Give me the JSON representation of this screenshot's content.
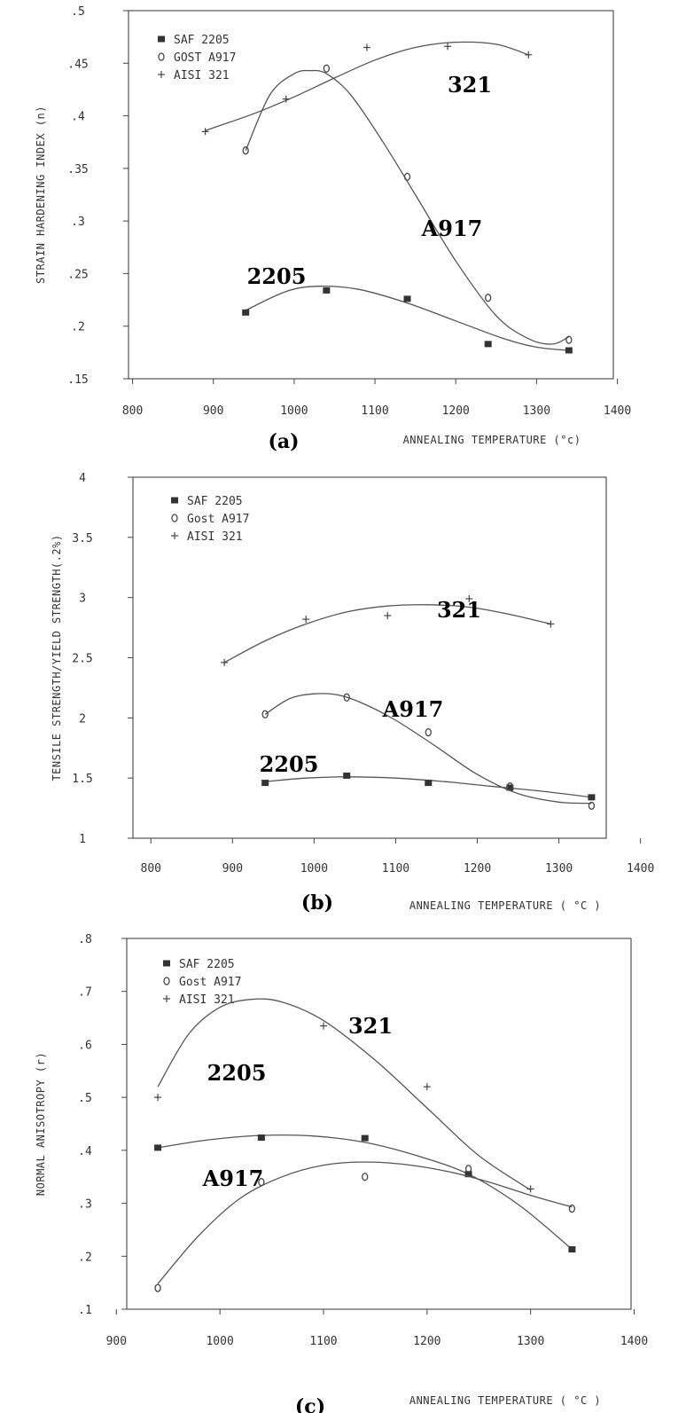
{
  "chart_data": [
    {
      "type": "line",
      "panel_label": "(a)",
      "xlabel": "ANNEALING TEMPERATURE (°c)",
      "ylabel": "STRAIN HARDENING INDEX (n)",
      "xlim": [
        800,
        1400
      ],
      "ylim": [
        0.15,
        0.5
      ],
      "x_ticks": [
        "800",
        "900",
        "1000",
        "1100",
        "1200",
        "1300",
        "1400"
      ],
      "y_ticks": [
        ".15",
        ".2",
        ".25",
        ".3",
        ".35",
        ".4",
        ".45",
        ".5"
      ],
      "legend": [
        "SAF 2205",
        "GOST A917",
        "AISI 321"
      ],
      "legend_position": "top-left",
      "series": [
        {
          "name": "SAF 2205",
          "label": "2205",
          "marker": "square",
          "x": [
            940,
            1040,
            1140,
            1240,
            1340
          ],
          "y": [
            0.213,
            0.234,
            0.226,
            0.183,
            0.177
          ],
          "curve_x": [
            940,
            990,
            1030,
            1080,
            1140,
            1200,
            1260,
            1300,
            1340
          ],
          "curve_y": [
            0.215,
            0.233,
            0.238,
            0.235,
            0.222,
            0.205,
            0.188,
            0.18,
            0.177
          ]
        },
        {
          "name": "GOST A917",
          "label": "A917",
          "marker": "circle",
          "x": [
            940,
            1040,
            1140,
            1240,
            1340
          ],
          "y": [
            0.367,
            0.445,
            0.342,
            0.227,
            0.187
          ],
          "curve_x": [
            940,
            970,
            1000,
            1020,
            1040,
            1070,
            1110,
            1150,
            1200,
            1250,
            1290,
            1320,
            1340
          ],
          "curve_y": [
            0.367,
            0.42,
            0.44,
            0.443,
            0.44,
            0.42,
            0.375,
            0.325,
            0.262,
            0.21,
            0.188,
            0.183,
            0.19
          ]
        },
        {
          "name": "AISI 321",
          "label": "321",
          "marker": "plus",
          "x": [
            890,
            990,
            1090,
            1190,
            1290
          ],
          "y": [
            0.385,
            0.416,
            0.465,
            0.466,
            0.458
          ],
          "curve_x": [
            890,
            950,
            1000,
            1050,
            1100,
            1150,
            1200,
            1250,
            1290
          ],
          "curve_y": [
            0.386,
            0.402,
            0.418,
            0.436,
            0.453,
            0.465,
            0.47,
            0.468,
            0.458
          ]
        }
      ]
    },
    {
      "type": "line",
      "panel_label": "(b)",
      "xlabel": "ANNEALING TEMPERATURE ( °C )",
      "ylabel": "TENSILE STRENGTH/YIELD STRENGTH(.2%)",
      "xlim": [
        800,
        1400
      ],
      "ylim": [
        1,
        4
      ],
      "x_ticks": [
        "800",
        "900",
        "1000",
        "1100",
        "1200",
        "1300",
        "1400"
      ],
      "y_ticks": [
        "1",
        "1.5",
        "2",
        "2.5",
        "3",
        "3.5",
        "4"
      ],
      "legend": [
        "SAF 2205",
        "Gost A917",
        "AISI 321"
      ],
      "legend_position": "top-left",
      "series": [
        {
          "name": "SAF 2205",
          "label": "2205",
          "marker": "square",
          "x": [
            940,
            1040,
            1140,
            1240,
            1340
          ],
          "y": [
            1.46,
            1.52,
            1.46,
            1.42,
            1.34
          ],
          "curve_x": [
            940,
            990,
            1040,
            1100,
            1160,
            1220,
            1280,
            1340
          ],
          "curve_y": [
            1.47,
            1.5,
            1.51,
            1.5,
            1.47,
            1.43,
            1.39,
            1.34
          ]
        },
        {
          "name": "Gost A917",
          "label": "A917",
          "marker": "circle",
          "x": [
            940,
            1040,
            1140,
            1240,
            1340
          ],
          "y": [
            2.03,
            2.17,
            1.88,
            1.43,
            1.27
          ],
          "curve_x": [
            940,
            970,
            1000,
            1030,
            1060,
            1100,
            1150,
            1200,
            1250,
            1300,
            1340
          ],
          "curve_y": [
            2.03,
            2.16,
            2.2,
            2.19,
            2.12,
            1.98,
            1.76,
            1.53,
            1.37,
            1.3,
            1.29
          ]
        },
        {
          "name": "AISI 321",
          "label": "321",
          "marker": "plus",
          "x": [
            890,
            990,
            1090,
            1190,
            1290
          ],
          "y": [
            2.46,
            2.82,
            2.85,
            2.99,
            2.78
          ],
          "curve_x": [
            890,
            940,
            990,
            1040,
            1090,
            1140,
            1190,
            1240,
            1290
          ],
          "curve_y": [
            2.46,
            2.64,
            2.78,
            2.88,
            2.93,
            2.94,
            2.92,
            2.86,
            2.78
          ]
        }
      ]
    },
    {
      "type": "line",
      "panel_label": "(c)",
      "xlabel": "ANNEALING TEMPERATURE ( °C )",
      "ylabel": "NORMAL ANISOTROPY (r)",
      "xlim": [
        900,
        1400
      ],
      "ylim": [
        0.1,
        0.8
      ],
      "x_ticks": [
        "900",
        "1000",
        "1100",
        "1200",
        "1300",
        "1400"
      ],
      "y_ticks": [
        ".1",
        ".2",
        ".3",
        ".4",
        ".5",
        ".6",
        ".7",
        ".8"
      ],
      "legend": [
        "SAF 2205",
        "Gost A917",
        "AISI 321"
      ],
      "legend_position": "top-left",
      "series": [
        {
          "name": "SAF 2205",
          "label": "2205",
          "marker": "square",
          "x": [
            940,
            1040,
            1140,
            1240,
            1340
          ],
          "y": [
            0.405,
            0.424,
            0.423,
            0.355,
            0.213
          ],
          "curve_x": [
            940,
            990,
            1040,
            1090,
            1140,
            1190,
            1240,
            1290,
            1340
          ],
          "curve_y": [
            0.405,
            0.42,
            0.428,
            0.427,
            0.415,
            0.39,
            0.355,
            0.295,
            0.213
          ]
        },
        {
          "name": "Gost A917",
          "label": "A917",
          "marker": "circle",
          "x": [
            940,
            1040,
            1140,
            1240,
            1340
          ],
          "y": [
            0.14,
            0.34,
            0.35,
            0.365,
            0.29
          ],
          "curve_x": [
            940,
            980,
            1020,
            1060,
            1100,
            1140,
            1180,
            1220,
            1260,
            1300,
            1340
          ],
          "curve_y": [
            0.148,
            0.24,
            0.31,
            0.35,
            0.372,
            0.378,
            0.373,
            0.36,
            0.34,
            0.315,
            0.293
          ]
        },
        {
          "name": "AISI 321",
          "label": "321",
          "marker": "plus",
          "x": [
            940,
            1100,
            1200,
            1300
          ],
          "y": [
            0.5,
            0.635,
            0.52,
            0.327
          ],
          "curve_x": [
            940,
            970,
            1000,
            1030,
            1060,
            1100,
            1150,
            1200,
            1250,
            1300
          ],
          "curve_y": [
            0.52,
            0.62,
            0.67,
            0.685,
            0.68,
            0.645,
            0.57,
            0.48,
            0.39,
            0.325
          ]
        }
      ]
    }
  ]
}
